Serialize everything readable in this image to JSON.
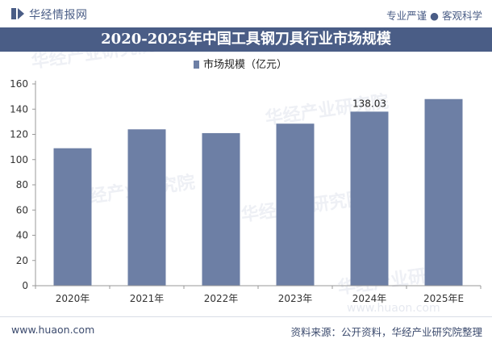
{
  "header": {
    "brand": "华经情报网",
    "tagline": "专业严谨 ● 客观科学"
  },
  "footer": {
    "site": "www.huaon.com",
    "source": "资料来源：公开资料，华经产业研究院整理"
  },
  "watermark": {
    "text": "华经产业研究院",
    "url": "www.huaon.com"
  },
  "chart_data": {
    "type": "bar",
    "title": "2020-2025年中国工具钢刀具行业市场规模",
    "categories": [
      "2020年",
      "2021年",
      "2022年",
      "2023年",
      "2024年",
      "2025年E"
    ],
    "series": [
      {
        "name": "市场规模（亿元）",
        "values": [
          109,
          124,
          121,
          128.5,
          138.03,
          148
        ],
        "color": "#6d7fa5"
      }
    ],
    "data_labels": [
      null,
      null,
      null,
      null,
      "138.03",
      null
    ],
    "yticks": [
      0,
      20,
      40,
      60,
      80,
      100,
      120,
      140,
      160
    ],
    "ylim": [
      0,
      160
    ],
    "grid": false,
    "legend_position": "top-center"
  }
}
